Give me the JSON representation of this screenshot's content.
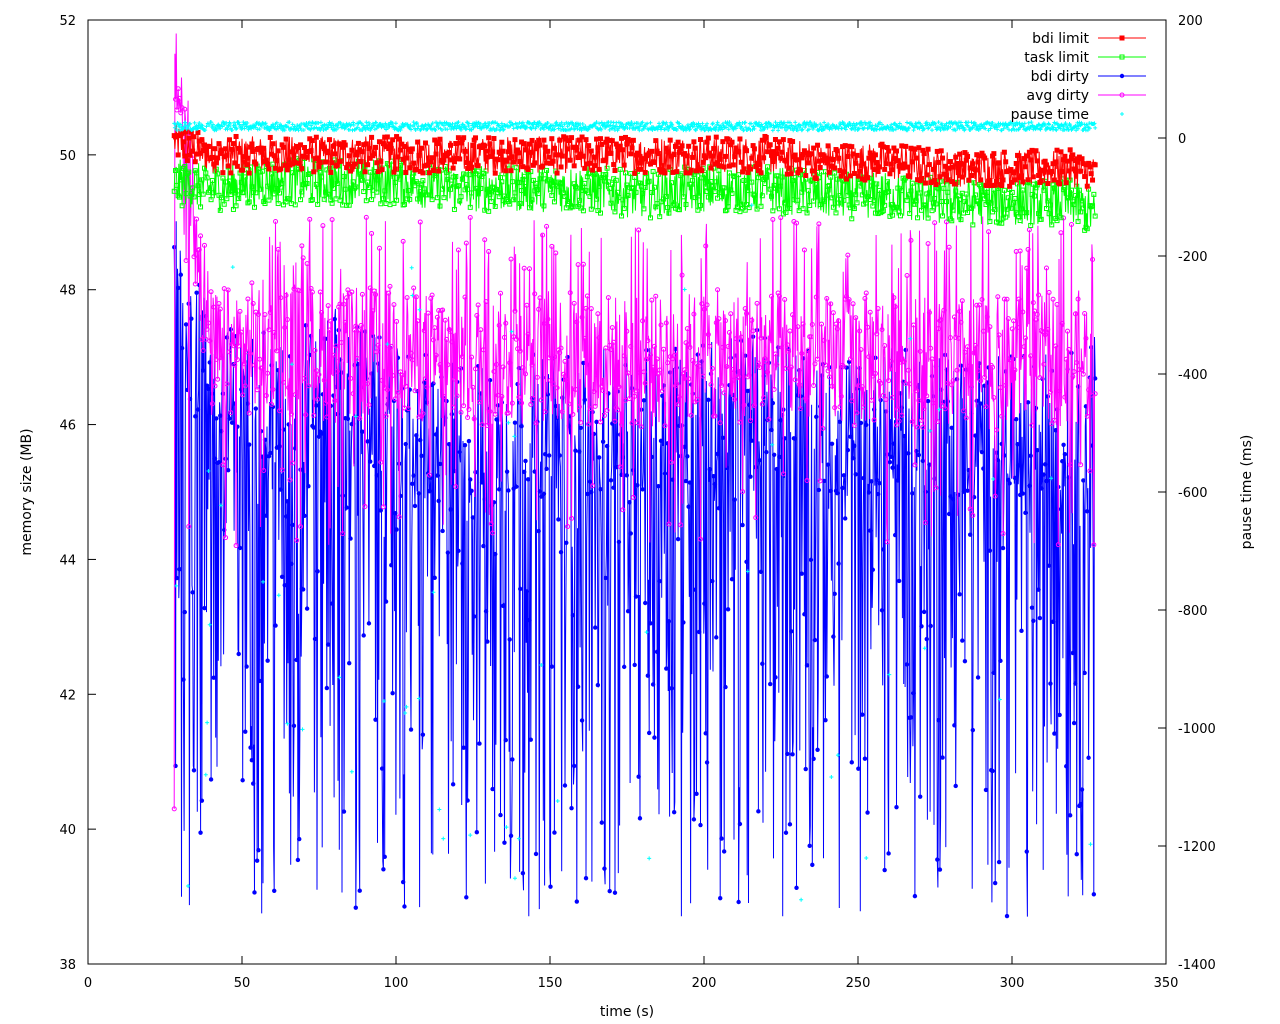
{
  "chart_data": {
    "type": "line",
    "xlabel": "time (s)",
    "ylabel": "memory size (MB)",
    "y2label": "pause time (ms)",
    "xlim": [
      0,
      350
    ],
    "ylim": [
      38,
      52
    ],
    "y2lim": [
      -1400,
      200
    ],
    "xticks": [
      "0",
      "50",
      "100",
      "150",
      "200",
      "250",
      "300",
      "350"
    ],
    "yticks": [
      "38",
      "40",
      "42",
      "44",
      "46",
      "48",
      "50",
      "52"
    ],
    "y2ticks": [
      "-1400",
      "-1200",
      "-1000",
      "-800",
      "-600",
      "-400",
      "-200",
      "0",
      "200"
    ],
    "grid": false,
    "legend_position": "top-right",
    "x_range_of_data": [
      28,
      327
    ],
    "series": [
      {
        "name": "bdi limit",
        "color": "#ff0000",
        "marker": "filled-square",
        "axis": "y1",
        "x": [
          28,
          40,
          60,
          80,
          100,
          120,
          140,
          160,
          180,
          200,
          220,
          240,
          260,
          280,
          300,
          320,
          327
        ],
        "values": [
          50.2,
          50.0,
          50.0,
          50.0,
          50.0,
          50.0,
          50.0,
          50.0,
          50.0,
          50.0,
          50.0,
          49.9,
          49.9,
          49.8,
          49.8,
          49.8,
          49.7
        ]
      },
      {
        "name": "task limit",
        "color": "#00ff00",
        "marker": "open-square",
        "axis": "y1",
        "x": [
          28,
          40,
          60,
          80,
          100,
          120,
          140,
          160,
          180,
          200,
          220,
          240,
          260,
          280,
          300,
          320,
          327
        ],
        "values": [
          49.6,
          49.5,
          49.6,
          49.6,
          49.6,
          49.5,
          49.5,
          49.5,
          49.4,
          49.5,
          49.5,
          49.4,
          49.4,
          49.3,
          49.3,
          49.3,
          49.1
        ]
      },
      {
        "name": "bdi dirty",
        "color": "#0000ff",
        "marker": "filled-circle",
        "axis": "y1",
        "x": [
          28,
          40,
          60,
          80,
          100,
          120,
          140,
          160,
          180,
          200,
          220,
          240,
          260,
          280,
          300,
          320,
          327
        ],
        "values": [
          47.8,
          46.0,
          45.8,
          46.2,
          45.6,
          45.4,
          45.5,
          45.6,
          45.6,
          45.8,
          45.9,
          45.4,
          45.6,
          45.5,
          45.5,
          45.6,
          45.8
        ]
      },
      {
        "name": "avg dirty",
        "color": "#ff00ff",
        "marker": "open-circle",
        "axis": "y1",
        "x": [
          28,
          40,
          60,
          80,
          100,
          120,
          140,
          160,
          180,
          200,
          220,
          240,
          260,
          280,
          300,
          320,
          327
        ],
        "values": [
          51.5,
          47.0,
          47.2,
          47.0,
          47.1,
          46.9,
          47.0,
          47.0,
          46.9,
          47.0,
          47.0,
          46.9,
          47.0,
          46.9,
          46.9,
          47.0,
          47.0
        ]
      },
      {
        "name": "pause time",
        "color": "#00ffff",
        "marker": "cross",
        "axis": "y2",
        "x": [
          28,
          40,
          60,
          80,
          100,
          120,
          140,
          160,
          180,
          200,
          220,
          240,
          260,
          280,
          300,
          320,
          327
        ],
        "values": [
          20,
          20,
          20,
          20,
          20,
          20,
          20,
          20,
          20,
          20,
          20,
          20,
          20,
          20,
          20,
          20,
          20
        ]
      }
    ]
  }
}
